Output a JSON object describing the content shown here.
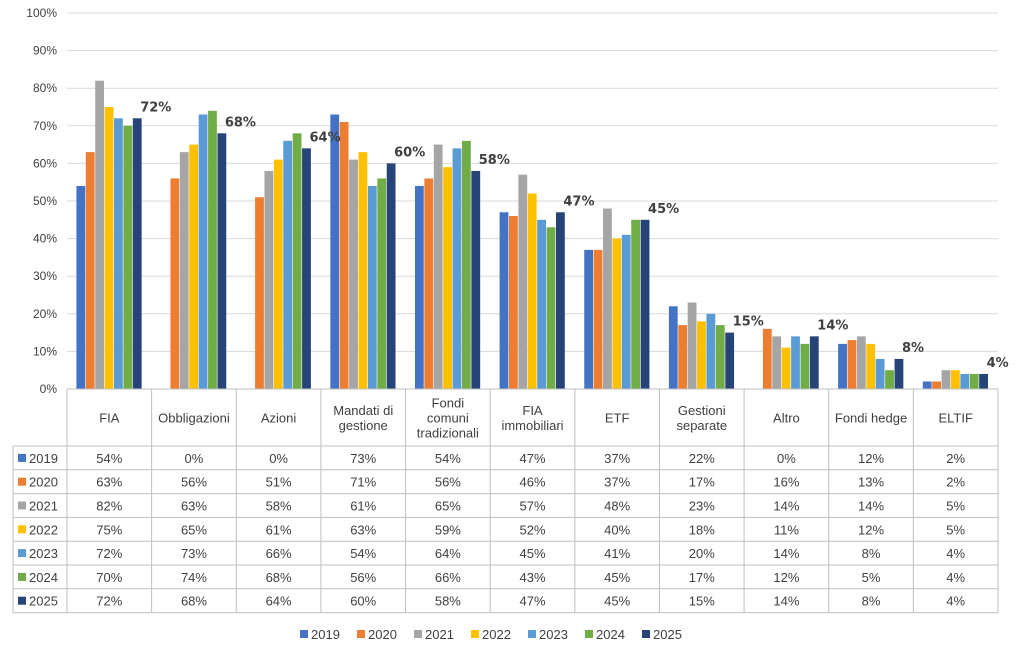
{
  "chart_data": {
    "type": "bar",
    "title": "",
    "xlabel": "",
    "ylabel": "",
    "ylim": [
      0,
      100
    ],
    "yticks": [
      "0%",
      "10%",
      "20%",
      "30%",
      "40%",
      "50%",
      "60%",
      "70%",
      "80%",
      "90%",
      "100%"
    ],
    "grid": true,
    "legend_position": "bottom",
    "data_table": true,
    "categories": [
      [
        "FIA"
      ],
      [
        "Obbligazioni"
      ],
      [
        "Azioni"
      ],
      [
        "Mandati di",
        "gestione"
      ],
      [
        "Fondi",
        "comuni",
        "tradizionali"
      ],
      [
        "FIA",
        "immobiliari"
      ],
      [
        "ETF"
      ],
      [
        "Gestioni",
        "separate"
      ],
      [
        "Altro"
      ],
      [
        "Fondi hedge"
      ],
      [
        "ELTIF"
      ]
    ],
    "series": [
      {
        "name": "2019",
        "color": "#4472C4",
        "values": [
          54,
          0,
          0,
          73,
          54,
          47,
          37,
          22,
          0,
          12,
          2
        ],
        "labels": [
          "54%",
          "0%",
          "0%",
          "73%",
          "54%",
          "47%",
          "37%",
          "22%",
          "0%",
          "12%",
          "2%"
        ]
      },
      {
        "name": "2020",
        "color": "#ED7D31",
        "values": [
          63,
          56,
          51,
          71,
          56,
          46,
          37,
          17,
          16,
          13,
          2
        ],
        "labels": [
          "63%",
          "56%",
          "51%",
          "71%",
          "56%",
          "46%",
          "37%",
          "17%",
          "16%",
          "13%",
          "2%"
        ]
      },
      {
        "name": "2021",
        "color": "#A5A5A5",
        "values": [
          82,
          63,
          58,
          61,
          65,
          57,
          48,
          23,
          14,
          14,
          5
        ],
        "labels": [
          "82%",
          "63%",
          "58%",
          "61%",
          "65%",
          "57%",
          "48%",
          "23%",
          "14%",
          "14%",
          "5%"
        ]
      },
      {
        "name": "2022",
        "color": "#FFC000",
        "values": [
          75,
          65,
          61,
          63,
          59,
          52,
          40,
          18,
          11,
          12,
          5
        ],
        "labels": [
          "75%",
          "65%",
          "61%",
          "63%",
          "59%",
          "52%",
          "40%",
          "18%",
          "11%",
          "12%",
          "5%"
        ]
      },
      {
        "name": "2023",
        "color": "#5B9BD5",
        "values": [
          72,
          73,
          66,
          54,
          64,
          45,
          41,
          20,
          14,
          8,
          4
        ],
        "labels": [
          "72%",
          "73%",
          "66%",
          "54%",
          "64%",
          "45%",
          "41%",
          "20%",
          "14%",
          "8%",
          "4%"
        ]
      },
      {
        "name": "2024",
        "color": "#70AD47",
        "values": [
          70,
          74,
          68,
          56,
          66,
          43,
          45,
          17,
          12,
          5,
          4
        ],
        "labels": [
          "70%",
          "74%",
          "68%",
          "56%",
          "66%",
          "43%",
          "45%",
          "17%",
          "12%",
          "5%",
          "4%"
        ]
      },
      {
        "name": "2025",
        "color": "#264478",
        "values": [
          72,
          68,
          64,
          60,
          58,
          47,
          45,
          15,
          14,
          8,
          4
        ],
        "labels": [
          "72%",
          "68%",
          "64%",
          "60%",
          "58%",
          "47%",
          "45%",
          "15%",
          "14%",
          "8%",
          "4%"
        ]
      }
    ],
    "annotations": {
      "series": "2025",
      "labels": [
        "72%",
        "68%",
        "64%",
        "60%",
        "58%",
        "47%",
        "45%",
        "15%",
        "14%",
        "8%",
        "4%"
      ]
    }
  }
}
